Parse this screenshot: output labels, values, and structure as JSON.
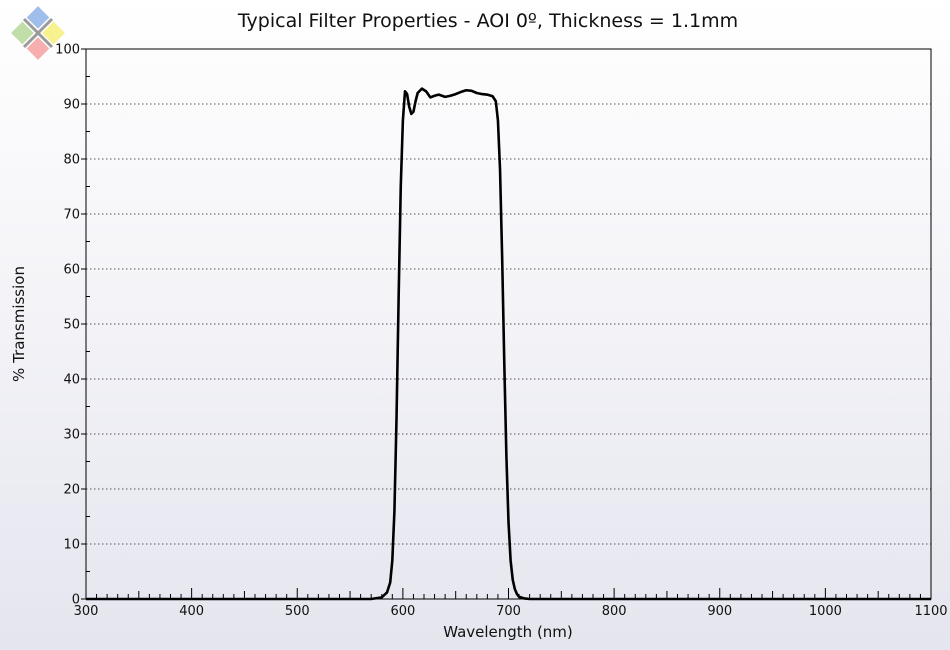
{
  "chart_data": {
    "type": "line",
    "title": "Typical Filter Properties - AOI 0º, Thickness = 1.1mm",
    "xlabel": "Wavelength (nm)",
    "ylabel": "% Transmission",
    "xlim": [
      300,
      1100
    ],
    "ylim": [
      0,
      100
    ],
    "xticks": [
      300,
      400,
      500,
      600,
      700,
      800,
      900,
      1000,
      1100
    ],
    "yticks": [
      0,
      10,
      20,
      30,
      40,
      50,
      60,
      70,
      80,
      90,
      100
    ],
    "grid": "horizontal-dotted",
    "legend": "none",
    "line_color": "#000000",
    "series": [
      {
        "x": [
          300,
          570,
          580,
          585,
          588,
          590,
          592,
          594,
          596,
          598,
          600,
          602,
          604,
          606,
          608,
          610,
          612,
          614,
          618,
          622,
          626,
          630,
          634,
          640,
          645,
          650,
          655,
          660,
          665,
          670,
          675,
          680,
          685,
          688,
          690,
          692,
          694,
          696,
          698,
          700,
          702,
          704,
          706,
          708,
          710,
          715,
          720,
          730,
          760,
          1100
        ],
        "y": [
          0,
          0,
          0.3,
          1.2,
          3,
          7,
          16,
          33,
          55,
          75,
          87,
          92.3,
          91.8,
          89.5,
          88.2,
          88.6,
          90.5,
          92,
          92.8,
          92.3,
          91.2,
          91.5,
          91.7,
          91.3,
          91.5,
          91.8,
          92.2,
          92.5,
          92.4,
          92,
          91.8,
          91.7,
          91.4,
          90.5,
          87,
          78,
          62,
          43,
          26,
          14,
          7,
          3.5,
          1.8,
          0.9,
          0.4,
          0.1,
          0,
          0,
          0,
          0
        ]
      }
    ]
  },
  "logo": {
    "icon": "crossed-squares-logo-icon",
    "colors": [
      "#8fb3e8",
      "#f6ef7a",
      "#f4a0a0",
      "#b6d89a"
    ]
  }
}
